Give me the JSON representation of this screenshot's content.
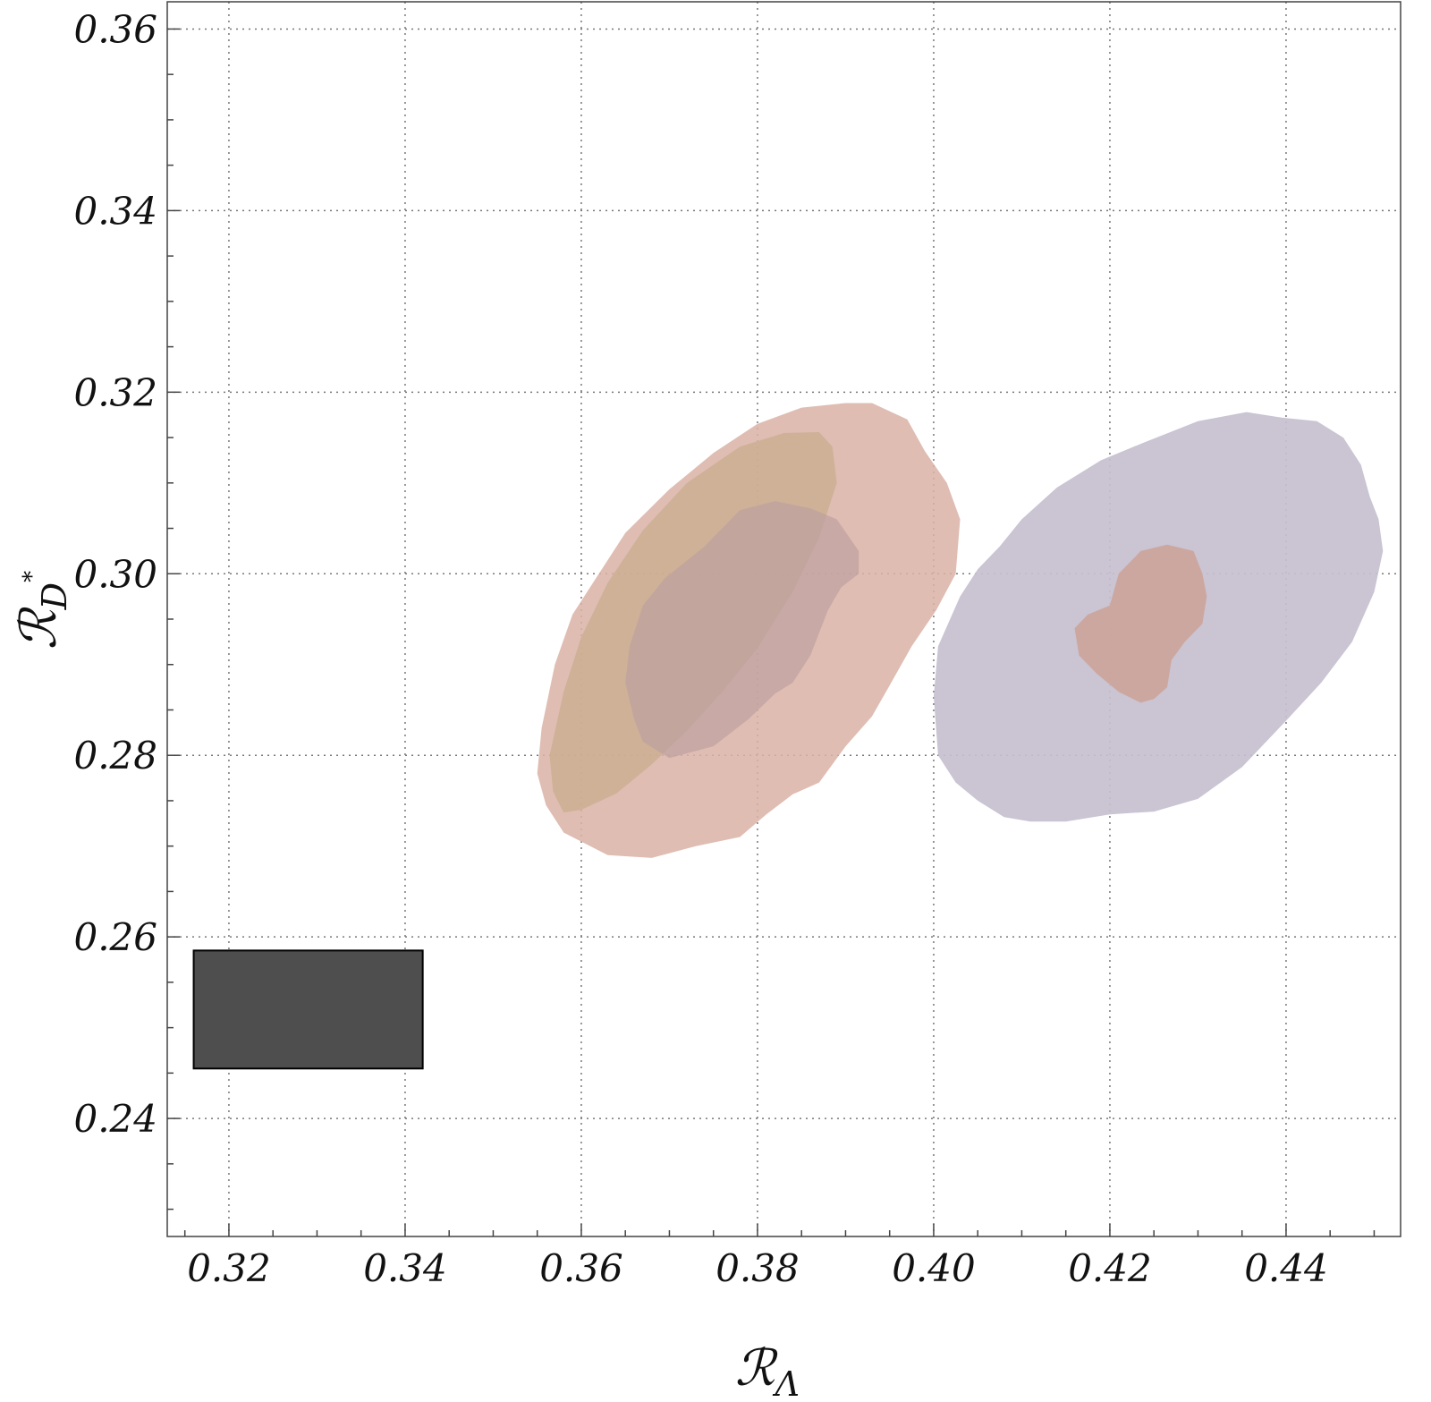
{
  "chart_data": {
    "type": "contour",
    "xlabel": {
      "main": "ℛ",
      "sub": "Λ"
    },
    "ylabel": {
      "main": "ℛ",
      "sub": "D",
      "sup": "*"
    },
    "xlim": [
      0.313,
      0.453
    ],
    "ylim": [
      0.227,
      0.363
    ],
    "xticks": [
      "0.32",
      "0.34",
      "0.36",
      "0.38",
      "0.40",
      "0.42",
      "0.44"
    ],
    "yticks": [
      "0.24",
      "0.26",
      "0.28",
      "0.30",
      "0.32",
      "0.34",
      "0.36"
    ],
    "xtick_values": [
      0.32,
      0.34,
      0.36,
      0.38,
      0.4,
      0.42,
      0.44
    ],
    "ytick_values": [
      0.24,
      0.26,
      0.28,
      0.3,
      0.32,
      0.34,
      0.36
    ],
    "grid": true,
    "rectangle": {
      "x": [
        0.316,
        0.342
      ],
      "y": [
        0.2455,
        0.2585
      ],
      "color": "#4e4e4e"
    },
    "regions": [
      {
        "id": "pink-outer",
        "color": "#d9b2a6",
        "opacity": 0.85,
        "points": [
          [
            0.363,
            0.269
          ],
          [
            0.368,
            0.2687
          ],
          [
            0.373,
            0.27
          ],
          [
            0.378,
            0.271
          ],
          [
            0.381,
            0.2735
          ],
          [
            0.384,
            0.2757
          ],
          [
            0.387,
            0.277
          ],
          [
            0.39,
            0.281
          ],
          [
            0.393,
            0.2843
          ],
          [
            0.395,
            0.2877
          ],
          [
            0.3975,
            0.292
          ],
          [
            0.4003,
            0.296
          ],
          [
            0.4025,
            0.3
          ],
          [
            0.403,
            0.306
          ],
          [
            0.4015,
            0.31
          ],
          [
            0.399,
            0.3135
          ],
          [
            0.397,
            0.317
          ],
          [
            0.393,
            0.3188
          ],
          [
            0.39,
            0.3188
          ],
          [
            0.385,
            0.3183
          ],
          [
            0.38,
            0.3165
          ],
          [
            0.375,
            0.3133
          ],
          [
            0.37,
            0.3093
          ],
          [
            0.365,
            0.3045
          ],
          [
            0.362,
            0.3
          ],
          [
            0.359,
            0.2955
          ],
          [
            0.357,
            0.29
          ],
          [
            0.3555,
            0.283
          ],
          [
            0.355,
            0.278
          ],
          [
            0.356,
            0.2745
          ],
          [
            0.358,
            0.2715
          ]
        ]
      },
      {
        "id": "olive-region",
        "color": "#c9ad8d",
        "opacity": 0.75,
        "points": [
          [
            0.358,
            0.2737
          ],
          [
            0.36,
            0.274
          ],
          [
            0.364,
            0.2758
          ],
          [
            0.368,
            0.279
          ],
          [
            0.372,
            0.2827
          ],
          [
            0.376,
            0.287
          ],
          [
            0.38,
            0.2918
          ],
          [
            0.384,
            0.298
          ],
          [
            0.387,
            0.304
          ],
          [
            0.389,
            0.31
          ],
          [
            0.3885,
            0.314
          ],
          [
            0.387,
            0.3156
          ],
          [
            0.383,
            0.3155
          ],
          [
            0.378,
            0.314
          ],
          [
            0.372,
            0.31
          ],
          [
            0.367,
            0.3048
          ],
          [
            0.363,
            0.299
          ],
          [
            0.36,
            0.293
          ],
          [
            0.358,
            0.287
          ],
          [
            0.3564,
            0.28
          ],
          [
            0.3568,
            0.276
          ]
        ]
      },
      {
        "id": "mauve-region",
        "color": "#bb9ea0",
        "opacity": 0.65,
        "points": [
          [
            0.37,
            0.2797
          ],
          [
            0.375,
            0.281
          ],
          [
            0.379,
            0.284
          ],
          [
            0.382,
            0.2868
          ],
          [
            0.384,
            0.288
          ],
          [
            0.386,
            0.291
          ],
          [
            0.388,
            0.296
          ],
          [
            0.3895,
            0.2985
          ],
          [
            0.3915,
            0.3
          ],
          [
            0.3915,
            0.3025
          ],
          [
            0.389,
            0.306
          ],
          [
            0.386,
            0.3072
          ],
          [
            0.382,
            0.308
          ],
          [
            0.378,
            0.307
          ],
          [
            0.374,
            0.303
          ],
          [
            0.3695,
            0.2995
          ],
          [
            0.367,
            0.2965
          ],
          [
            0.3655,
            0.292
          ],
          [
            0.365,
            0.288
          ],
          [
            0.366,
            0.284
          ],
          [
            0.367,
            0.2815
          ]
        ]
      },
      {
        "id": "lavender-region",
        "color": "#c5bfcf",
        "opacity": 0.92,
        "points": [
          [
            0.411,
            0.2727
          ],
          [
            0.415,
            0.2727
          ],
          [
            0.42,
            0.2735
          ],
          [
            0.425,
            0.2738
          ],
          [
            0.43,
            0.2752
          ],
          [
            0.435,
            0.2787
          ],
          [
            0.44,
            0.2838
          ],
          [
            0.444,
            0.288
          ],
          [
            0.4475,
            0.2925
          ],
          [
            0.45,
            0.298
          ],
          [
            0.451,
            0.3025
          ],
          [
            0.4505,
            0.306
          ],
          [
            0.4495,
            0.3085
          ],
          [
            0.4485,
            0.312
          ],
          [
            0.4465,
            0.315
          ],
          [
            0.4435,
            0.3168
          ],
          [
            0.4395,
            0.3172
          ],
          [
            0.4355,
            0.3178
          ],
          [
            0.43,
            0.3168
          ],
          [
            0.424,
            0.3145
          ],
          [
            0.419,
            0.3125
          ],
          [
            0.414,
            0.3095
          ],
          [
            0.41,
            0.306
          ],
          [
            0.4075,
            0.303
          ],
          [
            0.405,
            0.3005
          ],
          [
            0.403,
            0.2975
          ],
          [
            0.4005,
            0.292
          ],
          [
            0.4,
            0.2865
          ],
          [
            0.4005,
            0.28
          ],
          [
            0.4025,
            0.277
          ],
          [
            0.405,
            0.275
          ],
          [
            0.408,
            0.2732
          ]
        ]
      },
      {
        "id": "pink-inner",
        "color": "#cda295",
        "opacity": 0.85,
        "points": [
          [
            0.4235,
            0.2858
          ],
          [
            0.425,
            0.2862
          ],
          [
            0.4265,
            0.2875
          ],
          [
            0.427,
            0.2905
          ],
          [
            0.4285,
            0.2925
          ],
          [
            0.4305,
            0.2945
          ],
          [
            0.431,
            0.2975
          ],
          [
            0.4305,
            0.3
          ],
          [
            0.4295,
            0.3025
          ],
          [
            0.4265,
            0.3032
          ],
          [
            0.4235,
            0.3025
          ],
          [
            0.421,
            0.3
          ],
          [
            0.42,
            0.2965
          ],
          [
            0.4175,
            0.2955
          ],
          [
            0.416,
            0.294
          ],
          [
            0.4165,
            0.291
          ],
          [
            0.4185,
            0.289
          ],
          [
            0.421,
            0.287
          ]
        ]
      }
    ]
  }
}
